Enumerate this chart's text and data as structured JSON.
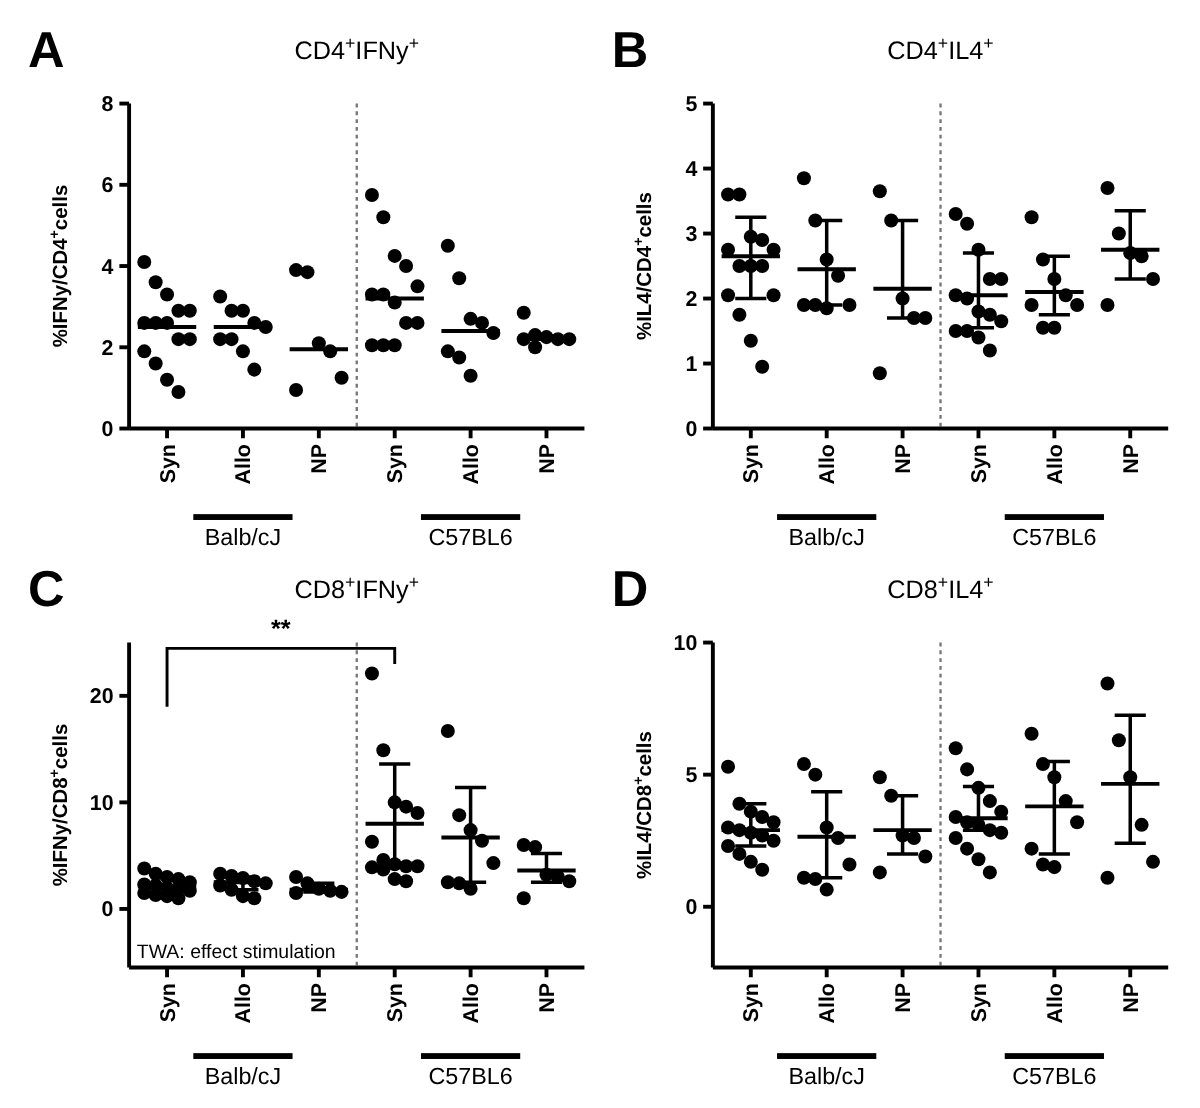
{
  "chart_data": [
    {
      "type": "scatter",
      "title": "CD4$^{+}$IFNy$^{+}$",
      "ylabel": "%IFNy/CD4$^{+}$cells",
      "categories": [
        "Syn",
        "Allo",
        "NP",
        "Syn",
        "Allo",
        "NP"
      ],
      "ylim": [
        0,
        8
      ],
      "yticks": [
        0,
        2,
        4,
        6,
        8
      ],
      "annotations": [
        "A",
        "Balb/cJ",
        "C57BL6"
      ],
      "series": [
        {
          "marker": "circle",
          "color": "#000000",
          "values": [
            4.1,
            3.25,
            3.9,
            5.75,
            4.5,
            2.85
          ]
        },
        {
          "marker": "circle",
          "color": "#000000",
          "values": [
            3.6,
            2.9,
            3.85,
            5.2,
            3.7,
            2.3
          ]
        },
        {
          "marker": "circle",
          "color": "#000000",
          "values": [
            3.3,
            2.9,
            2.1,
            4.25,
            2.7,
            2.25
          ]
        },
        {
          "marker": "circle",
          "color": "#000000",
          "values": [
            2.9,
            2.6,
            1.9,
            4.0,
            2.6,
            2.2
          ]
        },
        {
          "marker": "circle",
          "color": "#000000",
          "values": [
            2.9,
            2.5,
            1.25,
            3.5,
            2.35,
            2.2
          ]
        },
        {
          "marker": "circle",
          "color": "#000000",
          "values": [
            2.6,
            2.2,
            0.95,
            3.3,
            1.9,
            2.2
          ]
        },
        {
          "marker": "circle",
          "color": "#000000",
          "values": [
            2.6,
            2.2,
            null,
            3.3,
            1.75,
            2.0
          ]
        },
        {
          "marker": "circle",
          "color": "#000000",
          "values": [
            2.6,
            1.9,
            null,
            3.1,
            1.3,
            null
          ]
        },
        {
          "marker": "circle",
          "color": "#000000",
          "values": [
            2.2,
            1.45,
            null,
            2.6,
            null,
            null
          ]
        },
        {
          "marker": "circle",
          "color": "#000000",
          "values": [
            2.2,
            null,
            null,
            2.6,
            null,
            null
          ]
        },
        {
          "marker": "circle",
          "color": "#000000",
          "values": [
            1.9,
            null,
            null,
            2.05,
            null,
            null
          ]
        },
        {
          "marker": "circle",
          "color": "#000000",
          "values": [
            1.6,
            null,
            null,
            2.05,
            null,
            null
          ]
        },
        {
          "marker": "circle",
          "color": "#000000",
          "values": [
            1.2,
            null,
            null,
            2.05,
            null,
            null
          ]
        },
        {
          "marker": "circle",
          "color": "#000000",
          "values": [
            0.9,
            null,
            null,
            null,
            null,
            null
          ]
        },
        {
          "type": "box",
          "color": "#000000",
          "boxes": [
            {
              "low": 2.5,
              "q1": 2.5,
              "median": 2.5,
              "q3": 2.5,
              "high": 2.5
            },
            {
              "low": 2.5,
              "q1": 2.5,
              "median": 2.5,
              "q3": 2.5,
              "high": 2.5
            },
            {
              "low": 1.95,
              "q1": 1.95,
              "median": 1.95,
              "q3": 1.95,
              "high": 1.95
            },
            {
              "low": 3.2,
              "q1": 3.2,
              "median": 3.2,
              "q3": 3.2,
              "high": 3.2
            },
            {
              "low": 2.4,
              "q1": 2.4,
              "median": 2.4,
              "q3": 2.4,
              "high": 2.4
            },
            {
              "low": 2.2,
              "q1": 2.2,
              "median": 2.2,
              "q3": 2.2,
              "high": 2.2
            }
          ]
        }
      ]
    },
    {
      "type": "scatter",
      "title": "CD4$^{+}$IL4$^{+}$",
      "ylabel": "%IL4/CD4$^{+}$cells",
      "categories": [
        "Syn",
        "Allo",
        "NP",
        "Syn",
        "Allo",
        "NP"
      ],
      "ylim": [
        0,
        5
      ],
      "yticks": [
        0,
        1,
        2,
        3,
        4,
        5
      ],
      "annotations": [
        "B",
        "Balb/cJ",
        "C57BL6"
      ],
      "series": [
        {
          "marker": "circle",
          "color": "#000000",
          "values": [
            3.6,
            3.85,
            3.65,
            3.3,
            3.25,
            3.7
          ]
        },
        {
          "marker": "circle",
          "color": "#000000",
          "values": [
            3.6,
            3.2,
            3.2,
            3.15,
            2.6,
            3.0
          ]
        },
        {
          "marker": "circle",
          "color": "#000000",
          "values": [
            2.95,
            2.6,
            2.0,
            2.75,
            2.3,
            2.7
          ]
        },
        {
          "marker": "circle",
          "color": "#000000",
          "values": [
            2.9,
            2.35,
            1.7,
            2.3,
            2.05,
            2.65
          ]
        },
        {
          "marker": "circle",
          "color": "#000000",
          "values": [
            2.75,
            1.9,
            1.7,
            2.3,
            1.9,
            2.3
          ]
        },
        {
          "marker": "circle",
          "color": "#000000",
          "values": [
            2.75,
            1.9,
            0.85,
            2.05,
            1.9,
            1.9
          ]
        },
        {
          "marker": "circle",
          "color": "#000000",
          "values": [
            2.5,
            1.9,
            null,
            2.0,
            1.55,
            null
          ]
        },
        {
          "marker": "circle",
          "color": "#000000",
          "values": [
            2.5,
            1.85,
            null,
            1.8,
            1.55,
            null
          ]
        },
        {
          "marker": "circle",
          "color": "#000000",
          "values": [
            2.5,
            null,
            null,
            1.75,
            null,
            null
          ]
        },
        {
          "marker": "circle",
          "color": "#000000",
          "values": [
            2.05,
            null,
            null,
            1.65,
            null,
            null
          ]
        },
        {
          "marker": "circle",
          "color": "#000000",
          "values": [
            2.05,
            null,
            null,
            1.5,
            null,
            null
          ]
        },
        {
          "marker": "circle",
          "color": "#000000",
          "values": [
            1.75,
            null,
            null,
            1.5,
            null,
            null
          ]
        },
        {
          "marker": "circle",
          "color": "#000000",
          "values": [
            1.35,
            null,
            null,
            1.4,
            null,
            null
          ]
        },
        {
          "marker": "circle",
          "color": "#000000",
          "values": [
            0.95,
            null,
            null,
            1.2,
            null,
            null
          ]
        },
        {
          "type": "box",
          "color": "#000000",
          "boxes": [
            {
              "low": 2.0,
              "q1": 2.65,
              "median": 2.65,
              "q3": 2.65,
              "high": 3.25
            },
            {
              "low": 1.9,
              "q1": 2.45,
              "median": 2.45,
              "q3": 2.45,
              "high": 3.2
            },
            {
              "low": 1.7,
              "q1": 2.15,
              "median": 2.15,
              "q3": 2.15,
              "high": 3.2
            },
            {
              "low": 1.55,
              "q1": 2.05,
              "median": 2.05,
              "q3": 2.05,
              "high": 2.7
            },
            {
              "low": 1.75,
              "q1": 2.1,
              "median": 2.1,
              "q3": 2.1,
              "high": 2.65
            },
            {
              "low": 2.3,
              "q1": 2.75,
              "median": 2.75,
              "q3": 2.75,
              "high": 3.35
            }
          ]
        }
      ]
    },
    {
      "type": "scatter",
      "title": "CD8$^{+}$IFNy$^{+}$",
      "ylabel": "%IFNy/CD8$^{+}$cells",
      "categories": [
        "Syn",
        "Allo",
        "NP",
        "Syn",
        "Allo",
        "NP"
      ],
      "ylim": [
        -5.5,
        25
      ],
      "yticks": [
        0,
        10,
        20
      ],
      "annotations": [
        "C",
        "Balb/cJ",
        "C57BL6",
        "**",
        "TWA: effect stimulation"
      ],
      "series": [
        {
          "marker": "circle",
          "color": "#000000",
          "values": [
            3.8,
            3.3,
            3.0,
            22.1,
            16.7,
            6.0
          ]
        },
        {
          "marker": "circle",
          "color": "#000000",
          "values": [
            3.3,
            3.1,
            2.4,
            14.9,
            8.8,
            5.8
          ]
        },
        {
          "marker": "circle",
          "color": "#000000",
          "values": [
            3.0,
            2.9,
            1.9,
            10.0,
            7.4,
            3.2
          ]
        },
        {
          "marker": "circle",
          "color": "#000000",
          "values": [
            2.8,
            2.6,
            1.7,
            9.6,
            6.4,
            3.0
          ]
        },
        {
          "marker": "circle",
          "color": "#000000",
          "values": [
            2.5,
            2.4,
            1.6,
            9.0,
            4.3,
            2.6
          ]
        },
        {
          "marker": "circle",
          "color": "#000000",
          "values": [
            2.3,
            2.2,
            1.5,
            6.3,
            2.5,
            1.0
          ]
        },
        {
          "marker": "circle",
          "color": "#000000",
          "values": [
            2.2,
            1.8,
            null,
            4.6,
            2.4,
            null
          ]
        },
        {
          "marker": "circle",
          "color": "#000000",
          "values": [
            2.0,
            1.2,
            null,
            4.2,
            1.9,
            null
          ]
        },
        {
          "marker": "circle",
          "color": "#000000",
          "values": [
            1.9,
            1.0,
            null,
            4.0,
            null,
            null
          ]
        },
        {
          "marker": "circle",
          "color": "#000000",
          "values": [
            1.7,
            null,
            null,
            4.0,
            null,
            null
          ]
        },
        {
          "marker": "circle",
          "color": "#000000",
          "values": [
            1.5,
            null,
            null,
            3.9,
            null,
            null
          ]
        },
        {
          "marker": "circle",
          "color": "#000000",
          "values": [
            1.3,
            null,
            null,
            3.7,
            null,
            null
          ]
        },
        {
          "marker": "circle",
          "color": "#000000",
          "values": [
            1.2,
            null,
            null,
            2.8,
            null,
            null
          ]
        },
        {
          "marker": "circle",
          "color": "#000000",
          "values": [
            1.0,
            null,
            null,
            2.6,
            null,
            null
          ]
        },
        {
          "type": "box",
          "color": "#000000",
          "boxes": [
            {
              "low": 1.5,
              "q1": 2.1,
              "median": 2.1,
              "q3": 2.1,
              "high": 2.9
            },
            {
              "low": 1.8,
              "q1": 2.5,
              "median": 2.5,
              "q3": 2.5,
              "high": 3.0
            },
            {
              "low": 1.6,
              "q1": 1.8,
              "median": 1.8,
              "q3": 1.8,
              "high": 2.4
            },
            {
              "low": 4.0,
              "q1": 8.0,
              "median": 8.0,
              "q3": 8.0,
              "high": 13.6
            },
            {
              "low": 2.5,
              "q1": 6.7,
              "median": 6.7,
              "q3": 6.7,
              "high": 11.4
            },
            {
              "low": 2.5,
              "q1": 3.6,
              "median": 3.6,
              "q3": 3.6,
              "high": 5.2
            }
          ]
        }
      ]
    },
    {
      "type": "scatter",
      "title": "CD8$^{+}$IL4$^{+}$",
      "ylabel": "%IL4/CD8$^{+}$cells",
      "categories": [
        "Syn",
        "Allo",
        "NP",
        "Syn",
        "Allo",
        "NP"
      ],
      "ylim": [
        -2.3,
        10
      ],
      "yticks": [
        0,
        5,
        10
      ],
      "annotations": [
        "D",
        "Balb/cJ",
        "C57BL6"
      ],
      "series": [
        {
          "marker": "circle",
          "color": "#000000",
          "values": [
            5.3,
            5.4,
            4.9,
            6.0,
            6.55,
            8.45
          ]
        },
        {
          "marker": "circle",
          "color": "#000000",
          "values": [
            3.9,
            5.0,
            4.2,
            5.2,
            5.4,
            6.3
          ]
        },
        {
          "marker": "circle",
          "color": "#000000",
          "values": [
            3.6,
            3.0,
            2.7,
            4.5,
            4.9,
            4.9
          ]
        },
        {
          "marker": "circle",
          "color": "#000000",
          "values": [
            3.4,
            2.6,
            2.6,
            4.0,
            4.0,
            3.1
          ]
        },
        {
          "marker": "circle",
          "color": "#000000",
          "values": [
            3.2,
            1.6,
            1.9,
            3.6,
            3.2,
            1.7
          ]
        },
        {
          "marker": "circle",
          "color": "#000000",
          "values": [
            3.0,
            1.1,
            1.3,
            3.4,
            2.2,
            1.1
          ]
        },
        {
          "marker": "circle",
          "color": "#000000",
          "values": [
            2.9,
            1.05,
            null,
            3.2,
            1.6,
            null
          ]
        },
        {
          "marker": "circle",
          "color": "#000000",
          "values": [
            2.8,
            0.65,
            null,
            3.1,
            1.5,
            null
          ]
        },
        {
          "marker": "circle",
          "color": "#000000",
          "values": [
            2.7,
            null,
            null,
            2.9,
            null,
            null
          ]
        },
        {
          "marker": "circle",
          "color": "#000000",
          "values": [
            2.5,
            null,
            null,
            2.8,
            null,
            null
          ]
        },
        {
          "marker": "circle",
          "color": "#000000",
          "values": [
            2.3,
            null,
            null,
            2.6,
            null,
            null
          ]
        },
        {
          "marker": "circle",
          "color": "#000000",
          "values": [
            2.0,
            null,
            null,
            2.2,
            null,
            null
          ]
        },
        {
          "marker": "circle",
          "color": "#000000",
          "values": [
            1.7,
            null,
            null,
            1.8,
            null,
            null
          ]
        },
        {
          "marker": "circle",
          "color": "#000000",
          "values": [
            1.4,
            null,
            null,
            1.3,
            null,
            null
          ]
        },
        {
          "type": "box",
          "color": "#000000",
          "boxes": [
            {
              "low": 2.3,
              "q1": 2.9,
              "median": 2.9,
              "q3": 2.9,
              "high": 3.9
            },
            {
              "low": 1.1,
              "q1": 2.65,
              "median": 2.65,
              "q3": 2.65,
              "high": 4.35
            },
            {
              "low": 2.0,
              "q1": 2.9,
              "median": 2.9,
              "q3": 2.9,
              "high": 4.2
            },
            {
              "low": 2.9,
              "q1": 3.35,
              "median": 3.35,
              "q3": 3.35,
              "high": 4.55
            },
            {
              "low": 2.0,
              "q1": 3.8,
              "median": 3.8,
              "q3": 3.8,
              "high": 5.5
            },
            {
              "low": 2.4,
              "q1": 4.65,
              "median": 4.65,
              "q3": 4.65,
              "high": 7.25
            }
          ]
        }
      ]
    }
  ]
}
